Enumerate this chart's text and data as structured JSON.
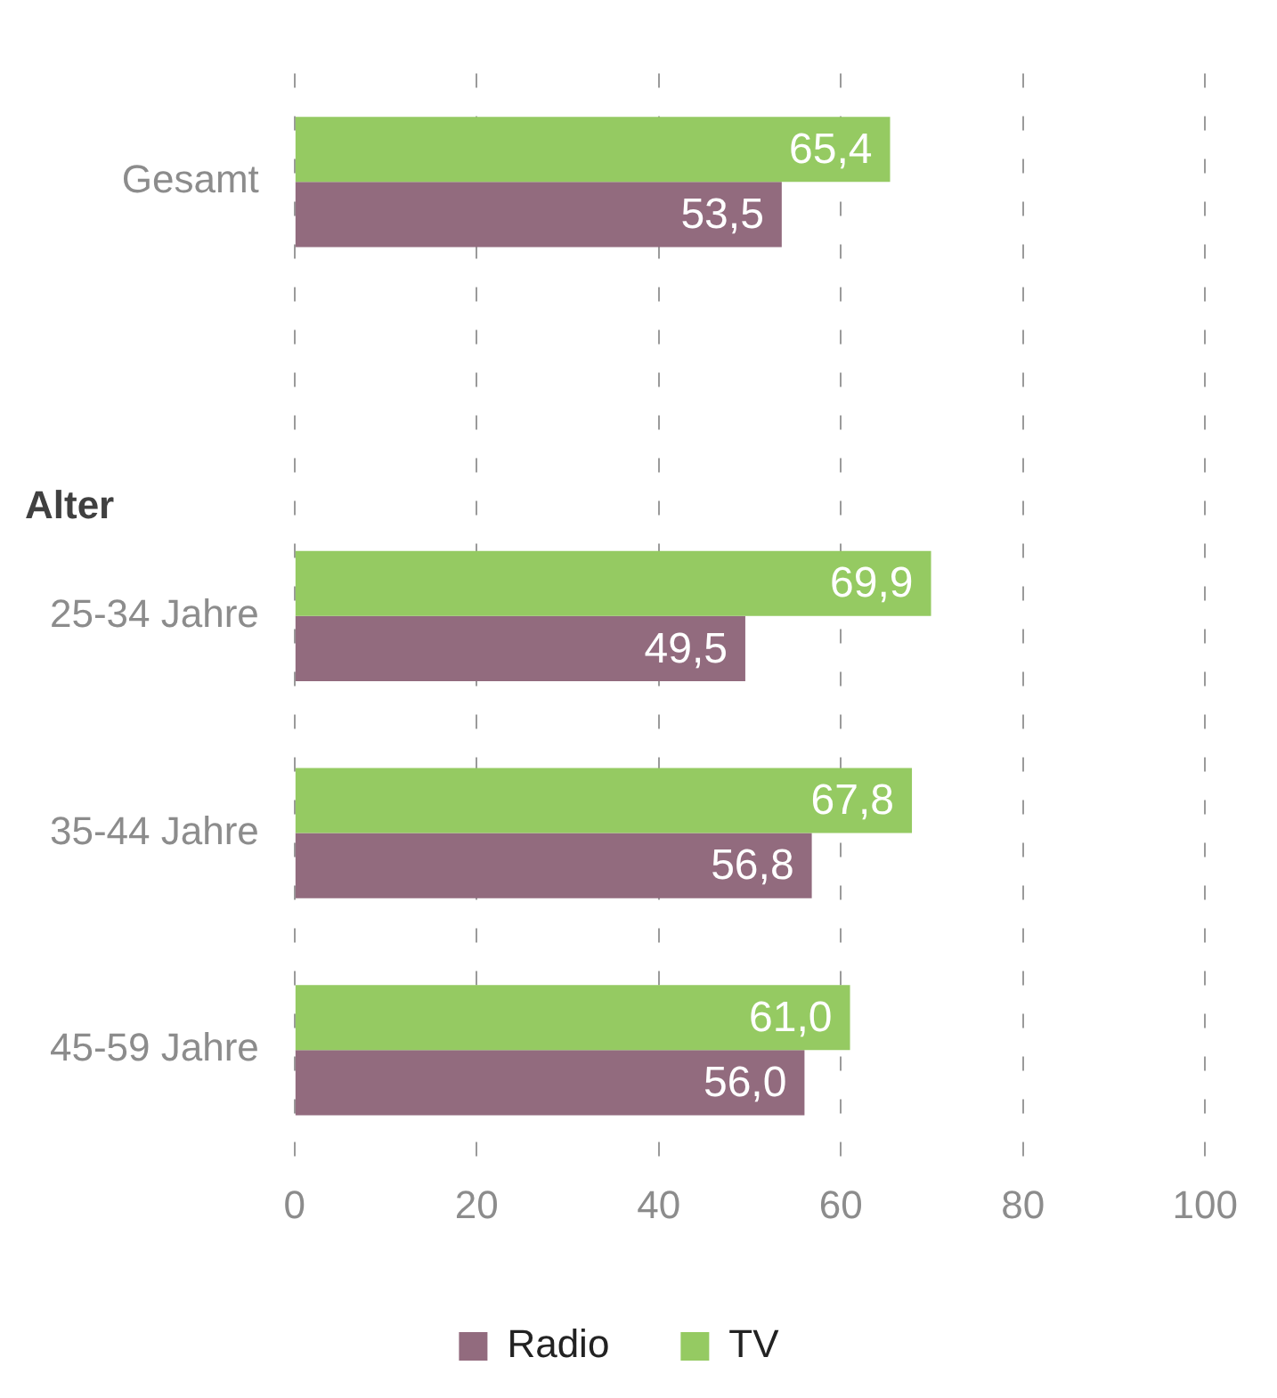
{
  "chart_data": {
    "type": "bar",
    "orientation": "horizontal",
    "categories": [
      "Gesamt",
      null,
      "25-34 Jahre",
      "35-44 Jahre",
      "45-59 Jahre"
    ],
    "series": [
      {
        "name": "Radio",
        "color": "#926b7e",
        "values": [
          53.5,
          null,
          49.5,
          56.8,
          56.0
        ],
        "value_labels": [
          "53,5",
          null,
          "49,5",
          "56,8",
          "56,0"
        ]
      },
      {
        "name": "TV",
        "color": "#95ca62",
        "values": [
          65.4,
          null,
          69.9,
          67.8,
          61.0
        ],
        "value_labels": [
          "65,4",
          null,
          "69,9",
          "67,8",
          "61,0"
        ]
      }
    ],
    "annotations": [
      "Alter"
    ],
    "xlim": [
      0,
      100
    ],
    "xticks": [
      0,
      20,
      40,
      60,
      80,
      100
    ],
    "grid": "x",
    "legend": "bottom"
  }
}
